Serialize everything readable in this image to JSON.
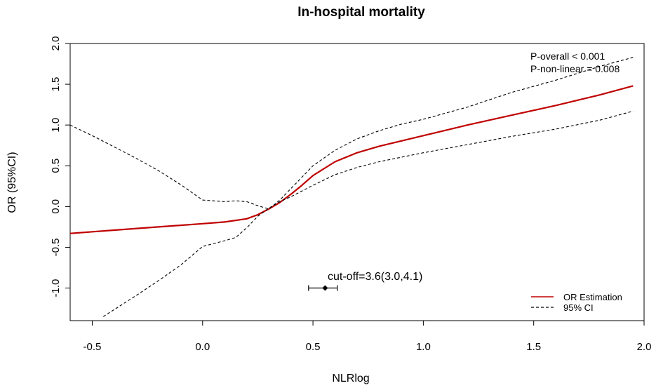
{
  "chart_data": {
    "type": "line",
    "title": "In-hospital mortality",
    "xlabel": "NLRlog",
    "ylabel": "OR (95%CI)",
    "xlim": [
      -0.6,
      2.0
    ],
    "ylim": [
      -1.4,
      2.0
    ],
    "x_ticks": [
      -0.5,
      0.0,
      0.5,
      1.0,
      1.5,
      2.0
    ],
    "x_tick_labels": [
      "-0.5",
      "0.0",
      "0.5",
      "1.0",
      "1.5",
      "2.0"
    ],
    "y_ticks": [
      -1.0,
      -0.5,
      0.0,
      0.5,
      1.0,
      1.5,
      2.0
    ],
    "y_tick_labels": [
      "-1.0",
      "-0.5",
      "0.0",
      "0.5",
      "1.0",
      "1.5",
      "2.0"
    ],
    "series": [
      {
        "name": "OR Estimation",
        "color": "#c00000",
        "style": "solid",
        "x": [
          -0.6,
          -0.4,
          -0.2,
          0.0,
          0.1,
          0.2,
          0.25,
          0.3,
          0.35,
          0.4,
          0.45,
          0.5,
          0.6,
          0.7,
          0.8,
          1.0,
          1.2,
          1.4,
          1.6,
          1.8,
          1.95
        ],
        "y": [
          -0.33,
          -0.29,
          -0.25,
          -0.21,
          -0.19,
          -0.15,
          -0.1,
          -0.03,
          0.05,
          0.15,
          0.26,
          0.38,
          0.55,
          0.66,
          0.74,
          0.87,
          1.0,
          1.12,
          1.24,
          1.37,
          1.48
        ]
      },
      {
        "name": "95% CI upper",
        "color": "#000000",
        "style": "dashed",
        "x": [
          -0.6,
          -0.5,
          -0.4,
          -0.3,
          -0.2,
          -0.1,
          0.0,
          0.1,
          0.15,
          0.2,
          0.25,
          0.3,
          0.35,
          0.4,
          0.5,
          0.6,
          0.7,
          0.8,
          0.9,
          1.0,
          1.2,
          1.4,
          1.6,
          1.8,
          1.95
        ],
        "y": [
          1.0,
          0.87,
          0.73,
          0.59,
          0.44,
          0.27,
          0.08,
          0.06,
          0.07,
          0.06,
          0.01,
          -0.03,
          0.08,
          0.22,
          0.5,
          0.69,
          0.83,
          0.93,
          1.01,
          1.07,
          1.22,
          1.4,
          1.55,
          1.72,
          1.83
        ]
      },
      {
        "name": "95% CI lower",
        "color": "#000000",
        "style": "dashed",
        "x": [
          -0.45,
          -0.3,
          -0.2,
          -0.1,
          0.0,
          0.1,
          0.15,
          0.2,
          0.25,
          0.3,
          0.35,
          0.4,
          0.5,
          0.6,
          0.7,
          0.8,
          1.0,
          1.2,
          1.4,
          1.6,
          1.8,
          1.95
        ],
        "y": [
          -1.35,
          -1.09,
          -0.91,
          -0.72,
          -0.49,
          -0.42,
          -0.38,
          -0.26,
          -0.12,
          -0.02,
          0.06,
          0.12,
          0.26,
          0.39,
          0.48,
          0.55,
          0.66,
          0.76,
          0.86,
          0.95,
          1.06,
          1.17
        ]
      }
    ],
    "cutoff": {
      "label": "cut-off=3.6(3.0,4.1)",
      "x": 0.555,
      "y": -1.0,
      "x_low": 0.48,
      "x_high": 0.61
    },
    "annotations": [
      "P-overall < 0.001",
      "P-non-linear = 0.008"
    ],
    "legend": {
      "position": "bottom-right",
      "entries": [
        {
          "label": "OR Estimation",
          "color": "#c00000",
          "style": "solid"
        },
        {
          "label": "95% CI",
          "color": "#000000",
          "style": "dashed"
        }
      ]
    }
  }
}
